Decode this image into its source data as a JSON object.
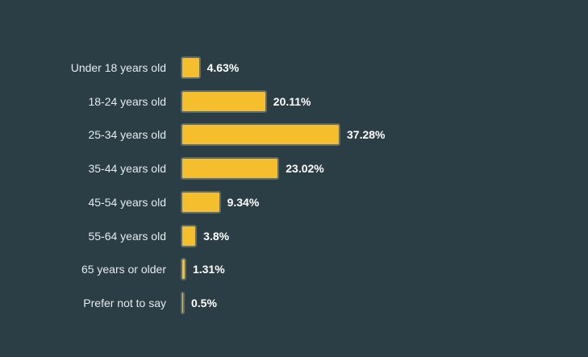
{
  "chart_data": {
    "type": "bar",
    "orientation": "horizontal",
    "categories": [
      "Under 18 years old",
      "18-24 years old",
      "25-34 years old",
      "35-44 years old",
      "45-54 years old",
      "55-64 years old",
      "65 years or older",
      "Prefer not to say"
    ],
    "values": [
      4.63,
      20.11,
      37.28,
      23.02,
      9.34,
      3.8,
      1.31,
      0.5
    ],
    "value_labels": [
      "4.63%",
      "20.11%",
      "37.28%",
      "23.02%",
      "9.34%",
      "3.8%",
      "1.31%",
      "0.5%"
    ],
    "title": "",
    "xlabel": "",
    "ylabel": "",
    "xlim": [
      0,
      37.28
    ],
    "grid": false,
    "colors": {
      "background": "#2b3d45",
      "bar_fill": "#f4be2c",
      "bar_border": "#5b6b72",
      "category_text": "#e6ebee",
      "value_text": "#ffffff"
    }
  }
}
